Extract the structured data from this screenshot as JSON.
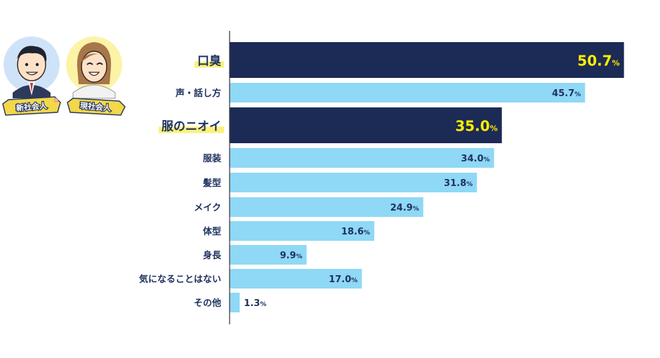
{
  "badges": {
    "left": "新社会人",
    "right": "現社会人"
  },
  "colors": {
    "highlight_bar": "#1c2a56",
    "normal_bar": "#8fd8f6",
    "highlight_text": "#ffee00",
    "label_text": "#1f3260",
    "label_marker": "#fbf17a"
  },
  "chart_data": {
    "type": "bar",
    "orientation": "horizontal",
    "unit": "%",
    "xlim": [
      0,
      51
    ],
    "categories": [
      "口臭",
      "声・話し方",
      "服のニオイ",
      "服装",
      "髪型",
      "メイク",
      "体型",
      "身長",
      "気になることはない",
      "その他"
    ],
    "values": [
      50.7,
      45.7,
      35.0,
      34.0,
      31.8,
      24.9,
      18.6,
      9.9,
      17.0,
      1.3
    ],
    "value_labels": [
      "50.7",
      "45.7",
      "35.0",
      "34.0",
      "31.8",
      "24.9",
      "18.6",
      "9.9",
      "17.0",
      "1.3"
    ],
    "highlighted": [
      "口臭",
      "服のニオイ"
    ]
  }
}
